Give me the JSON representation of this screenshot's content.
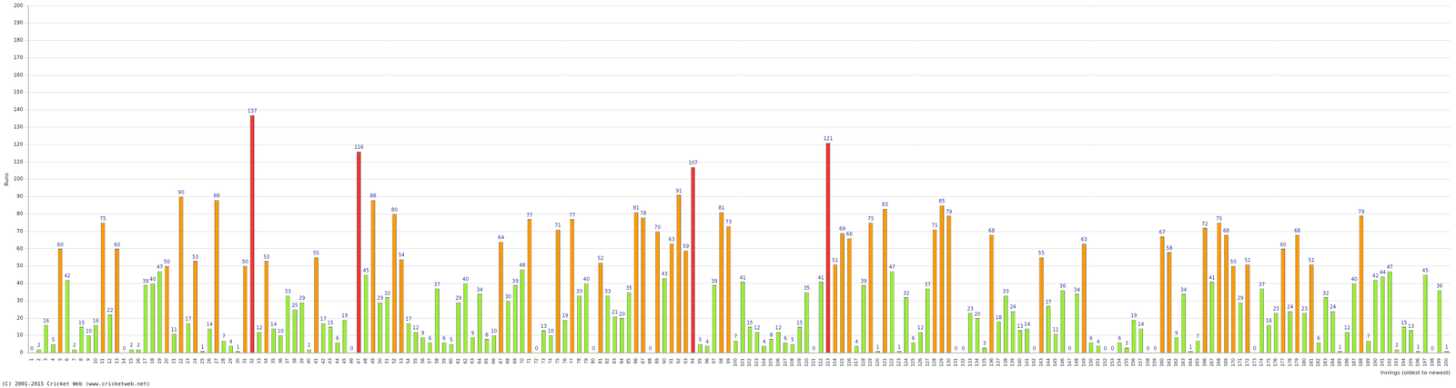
{
  "chart_data": {
    "type": "bar",
    "x_label": "Innings (oldest to newest)",
    "y_label": "Runs",
    "annotations": [
      "(C) 2001-2015 Cricket Web (www.cricketweb.net)"
    ],
    "categories": [
      "1",
      "2",
      "3",
      "4",
      "5",
      "6",
      "7",
      "8",
      "9",
      "10",
      "11",
      "12",
      "13",
      "14",
      "15",
      "16",
      "17",
      "18",
      "19",
      "20",
      "21",
      "22",
      "23",
      "24",
      "25",
      "26",
      "27",
      "28",
      "29",
      "30",
      "31",
      "32",
      "33",
      "34",
      "35",
      "36",
      "37",
      "38",
      "39",
      "40",
      "41",
      "42",
      "43",
      "44",
      "45",
      "46",
      "47",
      "48",
      "49",
      "50",
      "51",
      "52",
      "53",
      "54",
      "55",
      "56",
      "57",
      "58",
      "59",
      "60",
      "61",
      "62",
      "63",
      "64",
      "65",
      "66",
      "67",
      "68",
      "69",
      "70",
      "71",
      "72",
      "73",
      "74",
      "75",
      "76",
      "77",
      "78",
      "79",
      "80",
      "81",
      "82",
      "83",
      "84",
      "85",
      "86",
      "87",
      "88",
      "89",
      "90",
      "91",
      "92",
      "93",
      "94",
      "95",
      "96",
      "97",
      "98",
      "99",
      "100",
      "101",
      "102",
      "103",
      "104",
      "105",
      "106",
      "107",
      "108",
      "109",
      "110",
      "111",
      "112",
      "113",
      "114",
      "115",
      "116",
      "117",
      "118",
      "119",
      "120",
      "121",
      "122",
      "123",
      "124",
      "125",
      "126",
      "127",
      "128",
      "129",
      "130",
      "131",
      "132",
      "133",
      "134",
      "135",
      "136",
      "137",
      "138",
      "139",
      "140",
      "141",
      "142",
      "143",
      "144",
      "145",
      "146",
      "147",
      "148",
      "149",
      "150",
      "151",
      "152",
      "153",
      "154",
      "155",
      "156",
      "157",
      "158",
      "159",
      "160",
      "161",
      "162",
      "163",
      "164",
      "165",
      "166",
      "167",
      "168",
      "169",
      "170",
      "171",
      "172",
      "173",
      "174",
      "175",
      "176",
      "177",
      "178",
      "179",
      "180",
      "181",
      "182",
      "183",
      "184",
      "185",
      "186",
      "187",
      "188",
      "189",
      "190",
      "191",
      "192",
      "193",
      "194",
      "195",
      "196",
      "197",
      "198",
      "199",
      "200"
    ],
    "values": [
      0,
      2,
      16,
      5,
      60,
      42,
      2,
      15,
      10,
      16,
      75,
      22,
      60,
      0,
      2,
      2,
      39,
      40,
      47,
      50,
      11,
      90,
      17,
      53,
      1,
      14,
      88,
      7,
      4,
      1,
      50,
      137,
      12,
      53,
      14,
      10,
      33,
      25,
      29,
      2,
      55,
      17,
      15,
      6,
      19,
      0,
      116,
      45,
      88,
      29,
      32,
      80,
      54,
      17,
      12,
      9,
      6,
      37,
      6,
      5,
      29,
      40,
      9,
      34,
      8,
      10,
      64,
      30,
      39,
      48,
      77,
      0,
      13,
      10,
      71,
      19,
      77,
      33,
      40,
      0,
      52,
      33,
      21,
      20,
      35,
      81,
      78,
      0,
      70,
      43,
      63,
      91,
      59,
      107,
      5,
      4,
      39,
      81,
      73,
      7,
      41,
      15,
      12,
      4,
      8,
      12,
      6,
      5,
      15,
      35,
      0,
      41,
      121,
      51,
      69,
      66,
      4,
      39,
      75,
      1,
      83,
      47,
      1,
      32,
      6,
      12,
      37,
      71,
      85,
      79,
      0,
      0,
      23,
      20,
      3,
      68,
      18,
      33,
      24,
      13,
      14,
      0,
      55,
      27,
      11,
      36,
      0,
      34,
      63,
      6,
      4,
      0,
      0,
      6,
      3,
      19,
      14,
      0,
      0,
      67,
      58,
      9,
      34,
      1,
      7,
      72,
      41,
      75,
      68,
      50,
      29,
      51,
      0,
      37,
      16,
      23,
      60,
      24,
      68,
      23,
      51,
      6,
      32,
      24,
      1,
      12,
      40,
      79,
      7,
      42,
      44,
      47,
      2,
      15,
      13,
      1,
      45,
      0,
      36,
      1
    ],
    "colors": [
      "#99ee33",
      "#99ee33",
      "#99ee33",
      "#99ee33",
      "#ff9900",
      "#99ee33",
      "#99ee33",
      "#99ee33",
      "#99ee33",
      "#99ee33",
      "#ff9900",
      "#99ee33",
      "#ff9900",
      "#99ee33",
      "#99ee33",
      "#99ee33",
      "#99ee33",
      "#99ee33",
      "#99ee33",
      "#ff9900",
      "#99ee33",
      "#ff9900",
      "#99ee33",
      "#ff9900",
      "#99ee33",
      "#99ee33",
      "#ff9900",
      "#99ee33",
      "#99ee33",
      "#99ee33",
      "#ff9900",
      "#ee3333",
      "#99ee33",
      "#ff9900",
      "#99ee33",
      "#99ee33",
      "#99ee33",
      "#99ee33",
      "#99ee33",
      "#99ee33",
      "#ff9900",
      "#99ee33",
      "#99ee33",
      "#99ee33",
      "#99ee33",
      "#99ee33",
      "#ee3333",
      "#99ee33",
      "#ff9900",
      "#99ee33",
      "#99ee33",
      "#ff9900",
      "#ff9900",
      "#99ee33",
      "#99ee33",
      "#99ee33",
      "#99ee33",
      "#99ee33",
      "#99ee33",
      "#99ee33",
      "#99ee33",
      "#99ee33",
      "#99ee33",
      "#99ee33",
      "#99ee33",
      "#99ee33",
      "#ff9900",
      "#99ee33",
      "#99ee33",
      "#99ee33",
      "#ff9900",
      "#99ee33",
      "#99ee33",
      "#99ee33",
      "#ff9900",
      "#99ee33",
      "#ff9900",
      "#99ee33",
      "#99ee33",
      "#99ee33",
      "#ff9900",
      "#99ee33",
      "#99ee33",
      "#99ee33",
      "#99ee33",
      "#ff9900",
      "#ff9900",
      "#99ee33",
      "#ff9900",
      "#99ee33",
      "#ff9900",
      "#ff9900",
      "#ff9900",
      "#ee3333",
      "#99ee33",
      "#99ee33",
      "#99ee33",
      "#ff9900",
      "#ff9900",
      "#99ee33",
      "#99ee33",
      "#99ee33",
      "#99ee33",
      "#99ee33",
      "#99ee33",
      "#99ee33",
      "#99ee33",
      "#99ee33",
      "#99ee33",
      "#99ee33",
      "#99ee33",
      "#99ee33",
      "#ee3333",
      "#ff9900",
      "#ff9900",
      "#ff9900",
      "#99ee33",
      "#99ee33",
      "#ff9900",
      "#99ee33",
      "#ff9900",
      "#99ee33",
      "#99ee33",
      "#99ee33",
      "#99ee33",
      "#99ee33",
      "#99ee33",
      "#ff9900",
      "#ff9900",
      "#ff9900",
      "#99ee33",
      "#99ee33",
      "#99ee33",
      "#99ee33",
      "#99ee33",
      "#ff9900",
      "#99ee33",
      "#99ee33",
      "#99ee33",
      "#99ee33",
      "#99ee33",
      "#99ee33",
      "#ff9900",
      "#99ee33",
      "#99ee33",
      "#99ee33",
      "#99ee33",
      "#99ee33",
      "#ff9900",
      "#99ee33",
      "#99ee33",
      "#99ee33",
      "#99ee33",
      "#99ee33",
      "#99ee33",
      "#99ee33",
      "#99ee33",
      "#99ee33",
      "#99ee33",
      "#ff9900",
      "#ff9900",
      "#99ee33",
      "#99ee33",
      "#99ee33",
      "#99ee33",
      "#ff9900",
      "#99ee33",
      "#ff9900",
      "#ff9900",
      "#ff9900",
      "#99ee33",
      "#ff9900",
      "#99ee33",
      "#99ee33",
      "#99ee33",
      "#99ee33",
      "#ff9900",
      "#99ee33",
      "#ff9900",
      "#99ee33",
      "#ff9900",
      "#99ee33",
      "#99ee33",
      "#99ee33",
      "#99ee33",
      "#99ee33",
      "#99ee33",
      "#ff9900",
      "#99ee33",
      "#99ee33",
      "#99ee33",
      "#99ee33",
      "#99ee33",
      "#99ee33",
      "#99ee33",
      "#99ee33",
      "#99ee33",
      "#99ee33",
      "#99ee33",
      "#99ee33"
    ],
    "ylim": [
      0,
      200
    ],
    "yticks": [
      0,
      10,
      20,
      30,
      40,
      50,
      60,
      70,
      80,
      90,
      100,
      110,
      120,
      130,
      140,
      150,
      160,
      170,
      180,
      190,
      200
    ],
    "grid": true,
    "data_labels": true
  }
}
